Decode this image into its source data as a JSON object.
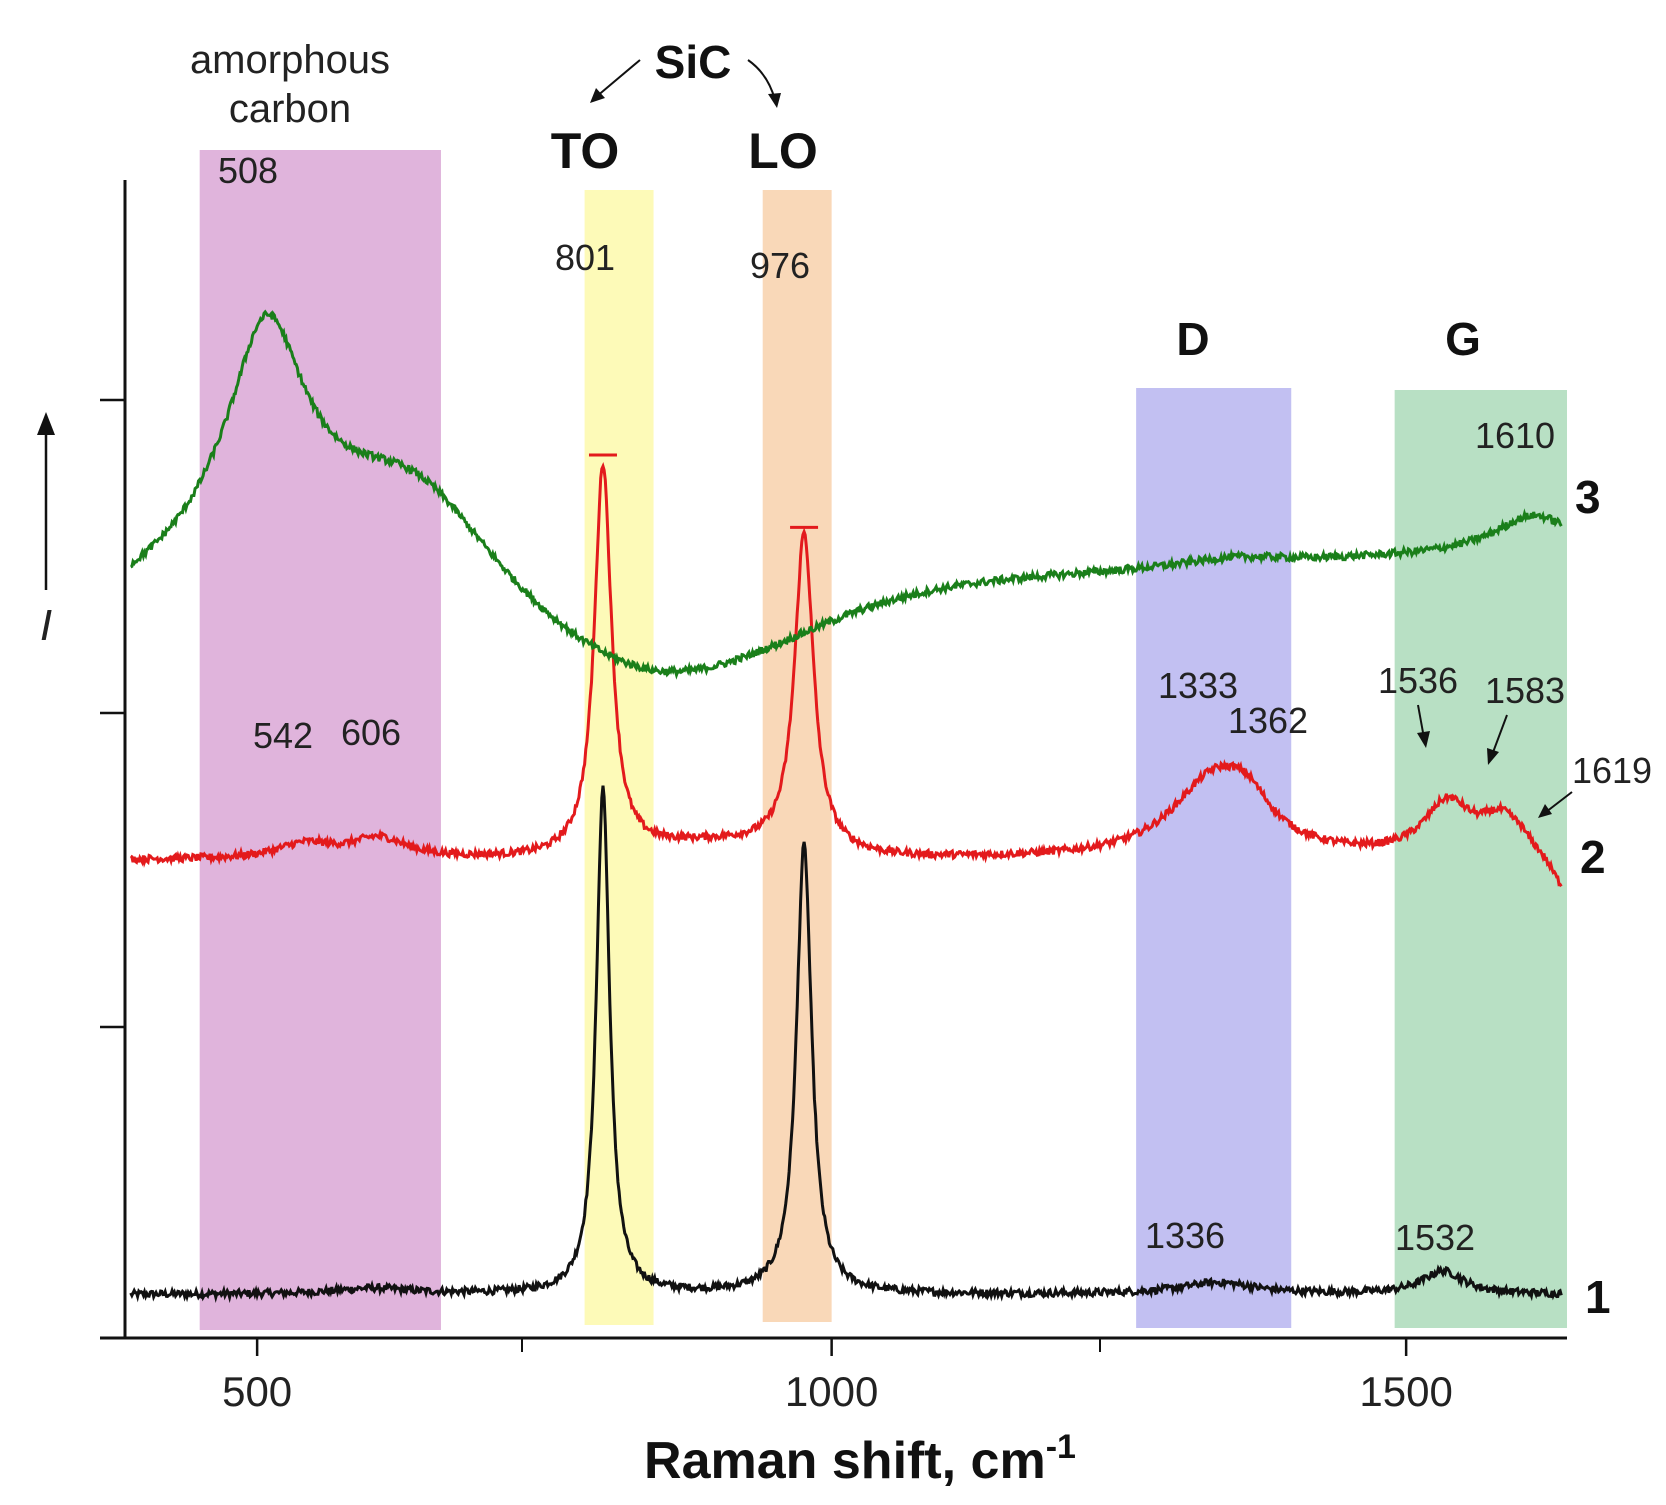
{
  "chart_data": {
    "type": "line",
    "xlabel": "Raman shift, cm",
    "xlabel_sup": "-1",
    "ylabel": "I",
    "xlim": [
      385,
      1640
    ],
    "ylim": [
      0,
      4
    ],
    "x_ticks": [
      500,
      1000,
      1500
    ],
    "x_tick_labels": [
      "500",
      "1000",
      "1500"
    ],
    "bands": [
      {
        "name": "amorphous-carbon",
        "x0": 450,
        "x1": 660,
        "color": "#e0b4dc",
        "label_lines": [
          "amorphous",
          "carbon"
        ]
      },
      {
        "name": "to",
        "x0": 785,
        "x1": 845,
        "color": "#fdfab8",
        "label": "TO"
      },
      {
        "name": "lo",
        "x0": 940,
        "x1": 1000,
        "color": "#f9d8b8",
        "label": "LO"
      },
      {
        "name": "d",
        "x0": 1265,
        "x1": 1400,
        "color": "#c2c0f2",
        "label": "D"
      },
      {
        "name": "g",
        "x0": 1490,
        "x1": 1640,
        "color": "#b8e0c4",
        "label": "G"
      }
    ],
    "group_label": "SiC",
    "series": [
      {
        "name": "1",
        "color": "#111111",
        "baseline": 0.15,
        "peaks": [
          {
            "x": 600,
            "h": 0.02,
            "w": 40
          },
          {
            "x": 801,
            "h": 1.75,
            "w": 7
          },
          {
            "x": 976,
            "h": 1.55,
            "w": 8
          },
          {
            "x": 1336,
            "h": 0.04,
            "w": 40
          },
          {
            "x": 1532,
            "h": 0.08,
            "w": 22
          }
        ],
        "peak_labels": [
          "1336",
          "1532"
        ]
      },
      {
        "name": "2",
        "color": "#e31a1c",
        "baseline": 1.65,
        "peaks": [
          {
            "x": 542,
            "h": 0.05,
            "w": 30
          },
          {
            "x": 606,
            "h": 0.07,
            "w": 30
          },
          {
            "x": 801,
            "h": 1.35,
            "w": 9
          },
          {
            "x": 976,
            "h": 1.1,
            "w": 10
          },
          {
            "x": 1333,
            "h": 0.27,
            "w": 45
          },
          {
            "x": 1362,
            "h": 0.1,
            "w": 25
          },
          {
            "x": 1536,
            "h": 0.18,
            "w": 25
          },
          {
            "x": 1583,
            "h": 0.12,
            "w": 22
          },
          {
            "x": 1619,
            "h": 0.04,
            "w": 15
          }
        ],
        "peak_labels": [
          "542",
          "606",
          "1333",
          "1362",
          "1536",
          "1583",
          "1619"
        ]
      },
      {
        "name": "3",
        "color": "#1a7f1a",
        "baseline": 2.55,
        "peaks": [
          {
            "x": 508,
            "h": 0.72,
            "w": 40
          },
          {
            "x": 640,
            "h": 0.25,
            "w": 80
          },
          {
            "x": 1350,
            "h": 0.03,
            "w": 60
          },
          {
            "x": 1610,
            "h": 0.12,
            "w": 40
          }
        ],
        "peak_labels": [
          "508",
          "1610"
        ]
      }
    ],
    "band_peak_labels": [
      "801",
      "976"
    ]
  }
}
